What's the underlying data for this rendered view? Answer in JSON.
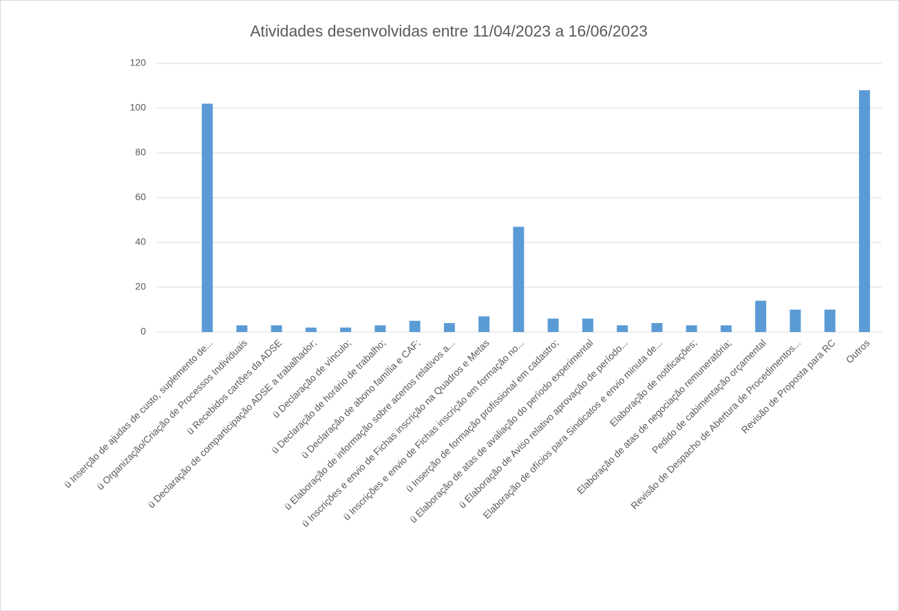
{
  "chart_data": {
    "type": "bar",
    "title": "Atividades desenvolvidas entre 11/04/2023 a 16/06/2023",
    "categories": [
      "ü  Inserção de ajudas de custo, suplemento de...",
      "ü  Organização/Criação de Processos Individuais",
      "ü  Recebidos cartões da ADSE",
      "ü  Declaração de comparticipação ADSE a trabalhador;",
      "ü  Declaração de vínculo;",
      "ü  Declaração de horário de trabalho;",
      "ü  Declaração de abono família e CAF;",
      "ü Elaboração de informação sobre acertos relativos a...",
      "ü Inscrições e envio de Fichas inscrição na Quadros e Metas",
      "ü Inscrições e envio de Fichas inscrição em formação no...",
      "ü Inserção de formação profissional em cadastro;",
      "ü Elaboração de atas de avaliação do período experimental",
      "ü Elaboração de Aviso relativo aprovação de período...",
      "Elaboração de ofícios para Sindicatos e envio minuta de...",
      "Elaboração de notificações;",
      "Elaboração de atas de negociação remuneratória;",
      "Pedido de cabimentação orçamental",
      "Revisão de Despacho de Abertura de Procedimentos...",
      "Revisão de Proposta para RC",
      "Outros"
    ],
    "values": [
      102,
      3,
      3,
      2,
      2,
      3,
      5,
      4,
      7,
      47,
      6,
      6,
      3,
      4,
      3,
      3,
      14,
      10,
      10,
      108
    ],
    "color": "#5b9bd5",
    "ylim": [
      0,
      120
    ],
    "yticks": [
      0,
      20,
      40,
      60,
      80,
      100,
      120
    ],
    "grid": true
  }
}
